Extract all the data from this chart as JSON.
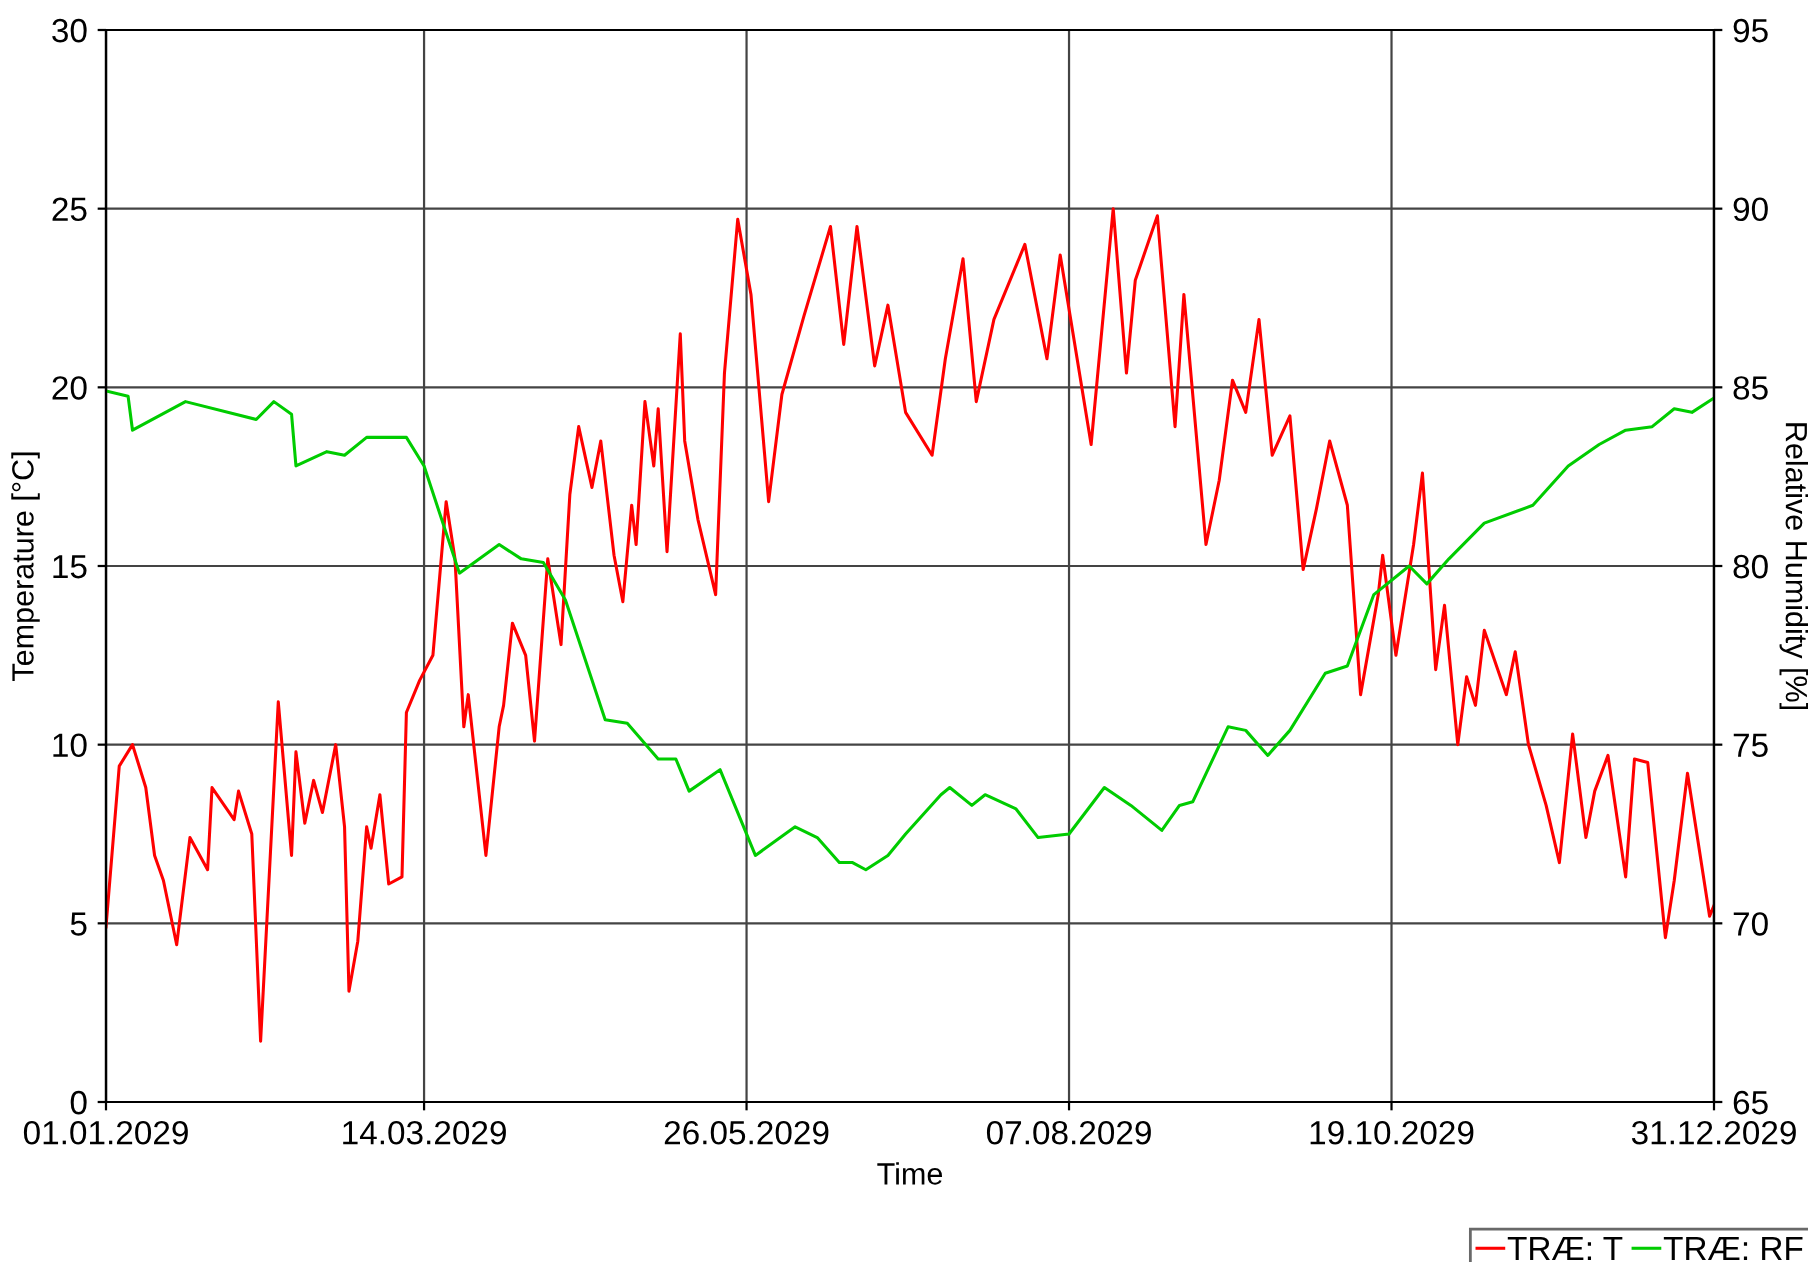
{
  "chart_data": {
    "type": "line",
    "xlabel": "Time",
    "ylabel": "Temperature [°C]",
    "y2label": "Relative Humidity [%]",
    "xlim": [
      "2029-01-01",
      "2029-12-31"
    ],
    "xticks": [
      {
        "value": "2029-01-01",
        "label": "01.01.2029"
      },
      {
        "value": "2029-03-14",
        "label": "14.03.2029"
      },
      {
        "value": "2029-05-26",
        "label": "26.05.2029"
      },
      {
        "value": "2029-08-07",
        "label": "07.08.2029"
      },
      {
        "value": "2029-10-19",
        "label": "19.10.2029"
      },
      {
        "value": "2029-12-31",
        "label": "31.12.2029"
      }
    ],
    "ylim": [
      0,
      30
    ],
    "yticks": [
      0,
      5,
      10,
      15,
      20,
      25,
      30
    ],
    "y2lim": [
      65,
      95
    ],
    "y2ticks": [
      65,
      70,
      75,
      80,
      85,
      90,
      95
    ],
    "grid": true,
    "legend": "bottom right",
    "marker": "none",
    "line_style": "solid",
    "series": [
      {
        "name": "TRÆ: T",
        "color": "#ff0000",
        "x": [
          "2029-01-01",
          "2029-01-04",
          "2029-01-07",
          "2029-01-10",
          "2029-01-12",
          "2029-01-14",
          "2029-01-17",
          "2029-01-20",
          "2029-01-24",
          "2029-01-25",
          "2029-01-30",
          "2029-01-31",
          "2029-02-03",
          "2029-02-05",
          "2029-02-09",
          "2029-02-12",
          "2029-02-13",
          "2029-02-15",
          "2029-02-17",
          "2029-02-19",
          "2029-02-22",
          "2029-02-24",
          "2029-02-25",
          "2029-02-27",
          "2029-03-01",
          "2029-03-02",
          "2029-03-04",
          "2029-03-06",
          "2029-03-09",
          "2029-03-10",
          "2029-03-13",
          "2029-03-16",
          "2029-03-19",
          "2029-03-21",
          "2029-03-23",
          "2029-03-24",
          "2029-03-28",
          "2029-03-31",
          "2029-04-01",
          "2029-04-03",
          "2029-04-06",
          "2029-04-08",
          "2029-04-10",
          "2029-04-11",
          "2029-04-14",
          "2029-04-16",
          "2029-04-18",
          "2029-04-21",
          "2029-04-23",
          "2029-04-26",
          "2029-04-28",
          "2029-04-30",
          "2029-05-01",
          "2029-05-03",
          "2029-05-05",
          "2029-05-06",
          "2029-05-08",
          "2029-05-11",
          "2029-05-12",
          "2029-05-15",
          "2029-05-19",
          "2029-05-21",
          "2029-05-24",
          "2029-05-27",
          "2029-05-31",
          "2029-06-03",
          "2029-06-08",
          "2029-06-14",
          "2029-06-17",
          "2029-06-20",
          "2029-06-24",
          "2029-06-27",
          "2029-07-01",
          "2029-07-07",
          "2029-07-10",
          "2029-07-14",
          "2029-07-17",
          "2029-07-21",
          "2029-07-28",
          "2029-08-02",
          "2029-08-05",
          "2029-08-12",
          "2029-08-17",
          "2029-08-20",
          "2029-08-22",
          "2029-08-27",
          "2029-08-31",
          "2029-09-02",
          "2029-09-07",
          "2029-09-10",
          "2029-09-13",
          "2029-09-16",
          "2029-09-19",
          "2029-09-22",
          "2029-09-26",
          "2029-09-29",
          "2029-10-02",
          "2029-10-05",
          "2029-10-09",
          "2029-10-12",
          "2029-10-16",
          "2029-10-17",
          "2029-10-20",
          "2029-10-24",
          "2029-10-26",
          "2029-10-29",
          "2029-10-31",
          "2029-11-03",
          "2029-11-05",
          "2029-11-07",
          "2029-11-09",
          "2029-11-14",
          "2029-11-16",
          "2029-11-19",
          "2029-11-23",
          "2029-11-26",
          "2029-11-29",
          "2029-12-02",
          "2029-12-04",
          "2029-12-07",
          "2029-12-11",
          "2029-12-13",
          "2029-12-16",
          "2029-12-20",
          "2029-12-22",
          "2029-12-25",
          "2029-12-30",
          "2029-12-31"
        ],
        "values": [
          4.9,
          9.4,
          10.0,
          8.8,
          6.9,
          6.2,
          4.4,
          7.4,
          6.5,
          8.8,
          7.9,
          8.7,
          7.5,
          1.7,
          11.2,
          6.9,
          9.8,
          7.8,
          9.0,
          8.1,
          10.0,
          7.7,
          3.1,
          4.5,
          7.7,
          7.1,
          8.6,
          6.1,
          6.3,
          10.9,
          11.8,
          12.5,
          16.8,
          15.2,
          10.5,
          11.4,
          6.9,
          10.5,
          11.1,
          13.4,
          12.5,
          10.1,
          13.5,
          15.2,
          12.8,
          17.0,
          18.9,
          17.2,
          18.5,
          15.3,
          14.0,
          16.7,
          15.6,
          19.6,
          17.8,
          19.4,
          15.4,
          21.5,
          18.5,
          16.3,
          14.2,
          20.4,
          24.7,
          22.6,
          16.8,
          19.8,
          22.0,
          24.5,
          21.2,
          24.5,
          20.6,
          22.3,
          19.3,
          18.1,
          20.8,
          23.6,
          19.6,
          21.9,
          24.0,
          20.8,
          23.7,
          18.4,
          25.0,
          20.4,
          23.0,
          24.8,
          18.9,
          22.6,
          15.6,
          17.4,
          20.2,
          19.3,
          21.9,
          18.1,
          19.2,
          14.9,
          16.6,
          18.5,
          16.7,
          11.4,
          14.2,
          15.3,
          12.5,
          15.6,
          17.6,
          12.1,
          13.9,
          10.0,
          11.9,
          11.1,
          13.2,
          11.4,
          12.6,
          10.0,
          8.3,
          6.7,
          10.3,
          7.4,
          8.7,
          9.7,
          6.3,
          9.6,
          9.5,
          4.6,
          6.2,
          9.2,
          5.2,
          5.5
        ]
      },
      {
        "name": "TRÆ: RF",
        "color": "#00cc00",
        "axis": "y2",
        "x": [
          "2029-01-01",
          "2029-01-06",
          "2029-01-07",
          "2029-01-19",
          "2029-02-04",
          "2029-02-08",
          "2029-02-12",
          "2029-02-13",
          "2029-02-20",
          "2029-02-24",
          "2029-03-01",
          "2029-03-10",
          "2029-03-14",
          "2029-03-22",
          "2029-03-31",
          "2029-04-05",
          "2029-04-10",
          "2029-04-15",
          "2029-04-24",
          "2029-04-29",
          "2029-05-06",
          "2029-05-10",
          "2029-05-13",
          "2029-05-20",
          "2029-05-28",
          "2029-06-06",
          "2029-06-11",
          "2029-06-16",
          "2029-06-19",
          "2029-06-22",
          "2029-06-27",
          "2029-07-01",
          "2029-07-09",
          "2029-07-11",
          "2029-07-16",
          "2029-07-19",
          "2029-07-26",
          "2029-07-31",
          "2029-08-07",
          "2029-08-15",
          "2029-08-21",
          "2029-08-28",
          "2029-09-01",
          "2029-09-04",
          "2029-09-12",
          "2029-09-16",
          "2029-09-21",
          "2029-09-26",
          "2029-10-04",
          "2029-10-09",
          "2029-10-15",
          "2029-10-23",
          "2029-10-27",
          "2029-11-01",
          "2029-11-09",
          "2029-11-20",
          "2029-11-28",
          "2029-12-05",
          "2029-12-11",
          "2029-12-17",
          "2029-12-22",
          "2029-12-26",
          "2029-12-31"
        ],
        "values": [
          84.9,
          84.75,
          83.8,
          84.6,
          84.1,
          84.6,
          84.25,
          82.8,
          83.2,
          83.1,
          83.6,
          83.6,
          82.8,
          79.8,
          80.6,
          80.2,
          80.1,
          79.05,
          75.7,
          75.6,
          74.6,
          74.6,
          73.7,
          74.3,
          71.9,
          72.7,
          72.4,
          71.7,
          71.7,
          71.5,
          71.9,
          72.5,
          73.6,
          73.8,
          73.3,
          73.6,
          73.2,
          72.4,
          72.5,
          73.8,
          73.3,
          72.6,
          73.3,
          73.4,
          75.5,
          75.4,
          74.7,
          75.4,
          77.0,
          77.2,
          79.2,
          80.0,
          79.5,
          80.2,
          81.2,
          81.7,
          82.8,
          83.4,
          83.8,
          83.9,
          84.4,
          84.3,
          84.7
        ]
      }
    ]
  }
}
